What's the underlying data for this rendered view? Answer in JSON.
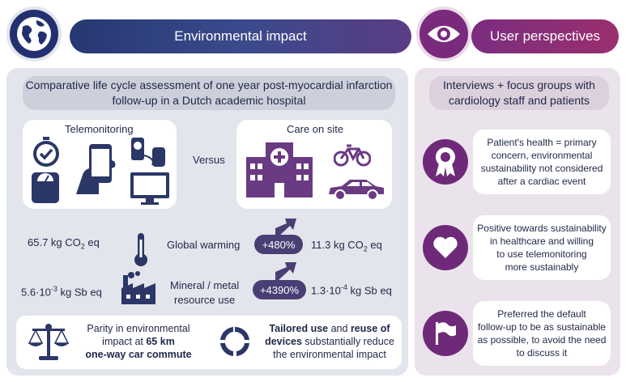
{
  "header": {
    "env_title": "Environmental impact",
    "user_title": "User perspectives",
    "env_icon": "globe-icon",
    "user_icon": "eye-icon"
  },
  "colors": {
    "navy": "#2c3a78",
    "purple": "#7a2a7d",
    "panel": "#e3e5ec",
    "dark_icon": "#2f3d5c"
  },
  "left": {
    "subtitle_line1": "Comparative life cycle assessment of one year post-myocardial infarction",
    "subtitle_line2": "follow-up in a Dutch academic hospital",
    "telemonitoring_label": "Telemonitoring",
    "versus_label": "Versus",
    "care_label": "Care on site",
    "metrics": {
      "gw_left": "65.7 kg CO",
      "gw_left_sub": "2",
      "gw_left_suffix": " eq",
      "gw_label": "Global warming",
      "gw_pct": "+480%",
      "gw_right": "11.3 kg CO",
      "gw_right_sub": "2",
      "gw_right_suffix": " eq",
      "mr_left": "5.6·10",
      "mr_left_sup": "-3",
      "mr_left_suffix": " kg Sb eq",
      "mr_label_line1": "Mineral / metal",
      "mr_label_line2": "resource use",
      "mr_pct": "+4390%",
      "mr_right": "1.3·10",
      "mr_right_sup": "-4",
      "mr_right_suffix": " kg Sb eq"
    },
    "bottom": {
      "parity_line1": "Parity in environmental",
      "parity_line2_pre": "impact at ",
      "parity_line2_bold": "65 km",
      "parity_line3": "one-way car commute",
      "tailored_bold1": "Tailored use",
      "tailored_mid": " and ",
      "tailored_bold2": "reuse of",
      "tailored_line2_bold": "devices",
      "tailored_line2_rest": " substantially reduce",
      "tailored_line3": "the environmental impact"
    }
  },
  "right": {
    "subtitle_line1": "Interviews + focus groups with",
    "subtitle_line2": "cardiology staff and patients",
    "items": [
      {
        "icon": "award-ribbon-icon",
        "lines": [
          "Patient's health = primary",
          "concern, environmental",
          "sustainability not considered",
          "after a cardiac event"
        ]
      },
      {
        "icon": "heart-icon",
        "lines": [
          "Positive towards sustainability",
          "in healthcare and willing",
          "to use telemonitoring",
          "more sustainably"
        ]
      },
      {
        "icon": "flag-icon",
        "lines": [
          "Preferred the default",
          "follow-up to be as sustainable",
          "as possible, to avoid the need",
          "to discuss it"
        ]
      }
    ]
  }
}
